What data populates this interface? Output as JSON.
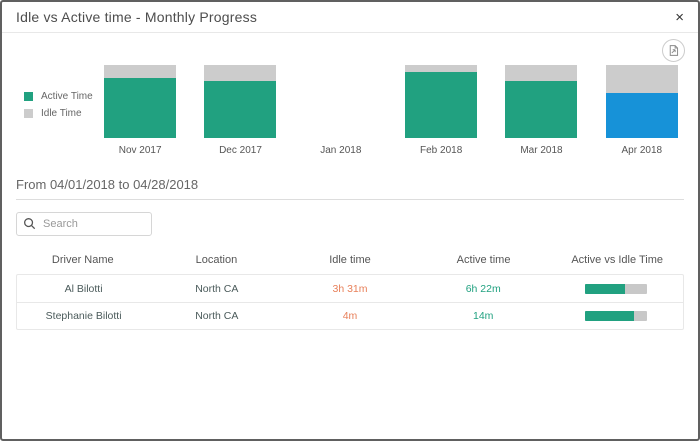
{
  "dialog": {
    "title": "Idle vs Active time - Monthly Progress",
    "close_label": "×"
  },
  "toolbar": {
    "export_icon": "export-image-icon"
  },
  "legend": [
    {
      "label": "Active Time",
      "color": "#21A180"
    },
    {
      "label": "Idle Time",
      "color": "#CCCCCC"
    }
  ],
  "chart_data": {
    "type": "bar",
    "subtype": "stacked-percent",
    "categories": [
      "Nov 2017",
      "Dec 2017",
      "Jan 2018",
      "Feb 2018",
      "Mar 2018",
      "Apr 2018"
    ],
    "series": [
      {
        "name": "Active Time",
        "values": [
          82,
          78,
          0,
          91,
          78,
          62
        ]
      },
      {
        "name": "Idle Time",
        "values": [
          18,
          22,
          0,
          9,
          22,
          38
        ]
      }
    ],
    "bar_colors": [
      "#21A180",
      "#21A180",
      "#21A180",
      "#21A180",
      "#21A180",
      "#1792D8"
    ],
    "idle_color": "#CCCCCC",
    "selected_category": "Apr 2018",
    "legend_position": "left",
    "grid": false,
    "ylim": [
      0,
      100
    ]
  },
  "date_range": {
    "text": "From 04/01/2018 to 04/28/2018"
  },
  "search": {
    "placeholder": "Search"
  },
  "table": {
    "columns": [
      "Driver Name",
      "Location",
      "Idle time",
      "Active time",
      "Active vs Idle Time"
    ],
    "rows": [
      {
        "driver": "Al Bilotti",
        "location": "North CA",
        "idle": "3h 31m",
        "active": "6h 22m",
        "active_pct": 64
      },
      {
        "driver": "Stephanie Bilotti",
        "location": "North CA",
        "idle": "4m",
        "active": "14m",
        "active_pct": 78
      }
    ],
    "ratio_fill_color": "#21A180",
    "ratio_track_color": "#C8C8C8"
  },
  "colors": {
    "active_teal": "#21A180",
    "idle_gray": "#CCCCCC",
    "selected_blue": "#1792D8",
    "idle_text_orange": "#E8805A"
  }
}
